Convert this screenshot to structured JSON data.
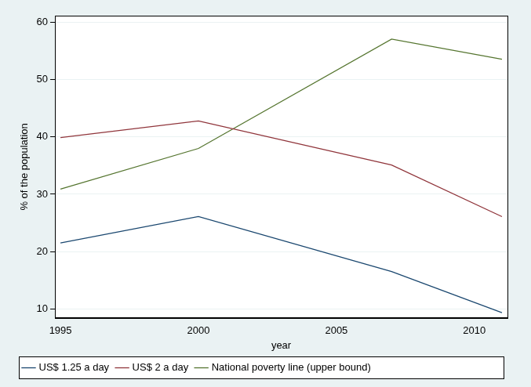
{
  "chart_data": {
    "type": "line",
    "x_label": "year",
    "y_label": "% of the population",
    "x": [
      1995,
      2000,
      2007,
      2011
    ],
    "series": [
      {
        "name": "US$ 1.25 a day",
        "color": "#1a476f",
        "values": [
          21.5,
          26.1,
          16.5,
          9.3
        ]
      },
      {
        "name": "US$ 2 a day",
        "color": "#90353b",
        "values": [
          39.9,
          42.8,
          35.1,
          26.1
        ]
      },
      {
        "name": "National poverty line (upper bound)",
        "color": "#55752f",
        "values": [
          30.9,
          38.0,
          57.1,
          53.6
        ]
      }
    ],
    "xlim": [
      1994.8,
      2011.2
    ],
    "ylim": [
      8.4,
      61.2
    ],
    "xticks": [
      1995,
      2000,
      2005,
      2010
    ],
    "yticks": [
      10,
      20,
      30,
      40,
      50,
      60
    ],
    "grid": true,
    "legend": "bottom"
  }
}
